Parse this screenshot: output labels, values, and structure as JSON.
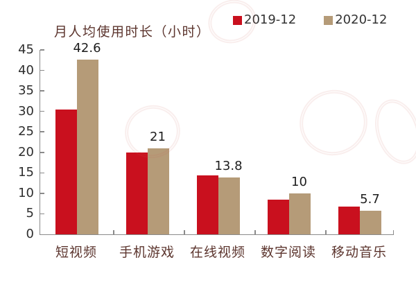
{
  "chart_data": {
    "type": "bar",
    "title": "月人均使用时长（小时）",
    "categories": [
      "短视频",
      "手机游戏",
      "在线视频",
      "数字阅读",
      "移动音乐"
    ],
    "series": [
      {
        "name": "2019-12",
        "color": "#c9101e",
        "values": [
          30.5,
          20,
          14.3,
          8.5,
          6.8
        ]
      },
      {
        "name": "2020-12",
        "color": "#b59b78",
        "values": [
          42.6,
          21,
          13.8,
          10,
          5.7
        ]
      }
    ],
    "value_labels": [
      "42.6",
      "21",
      "13.8",
      "10",
      "5.7"
    ],
    "xlabel": "",
    "ylabel": "",
    "ylim": [
      0,
      45
    ],
    "yticks": [
      0,
      5,
      10,
      15,
      20,
      25,
      30,
      35,
      40,
      45
    ],
    "grid": false,
    "legend_position": "top-right"
  },
  "colors": {
    "series_2019": "#c9101e",
    "series_2020": "#b59b78",
    "axis_line": "#8a8a8a",
    "category_text": "#5c352e",
    "number_text": "#2e2e2e"
  }
}
